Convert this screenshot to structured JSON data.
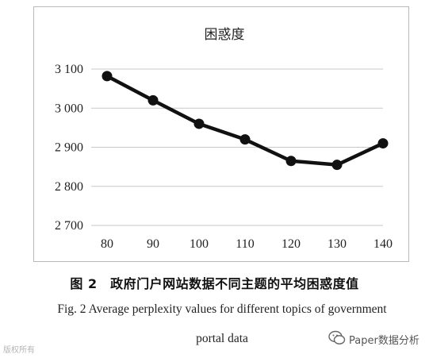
{
  "chart_data": {
    "type": "line",
    "title": "困惑度",
    "xlabel": "",
    "ylabel": "",
    "x": [
      80,
      90,
      100,
      110,
      120,
      130,
      140
    ],
    "x_tick_labels": [
      "80",
      "90",
      "100",
      "110",
      "120",
      "130",
      "140"
    ],
    "series": [
      {
        "values": [
          3082,
          3020,
          2960,
          2920,
          2865,
          2855,
          2910
        ]
      }
    ],
    "y_ticks": [
      2700,
      2800,
      2900,
      3000,
      3100
    ],
    "y_tick_labels": [
      "2 700",
      "2 800",
      "2 900",
      "3 000",
      "3 100"
    ],
    "ylim": [
      2700,
      3100
    ],
    "grid": true,
    "line_color": "#111111",
    "grid_color": "#c8c8c8"
  },
  "caption": {
    "cn": "图 2　政府门户网站数据不同主题的平均困惑度值",
    "en_line1": "Fig. 2 Average perplexity values for different topics of government",
    "en_line2": "portal data"
  },
  "watermarks": {
    "left": "版权所有",
    "right": "Paper数据分析",
    "right_icon": "wechat-icon"
  }
}
